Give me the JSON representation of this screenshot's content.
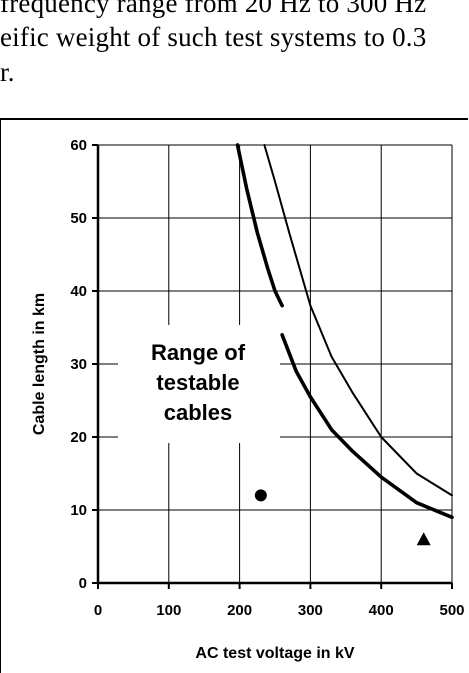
{
  "text": {
    "line1": "frequency range from 20 Hz to 300 Hz",
    "line2": "eific weight of such test systems to 0.3",
    "line3": "r."
  },
  "chart_data": {
    "type": "line",
    "xlabel": "AC test voltage in kV",
    "ylabel": "Cable length in km",
    "xlim": [
      0,
      500
    ],
    "ylim": [
      0,
      60
    ],
    "x_ticks": [
      "0",
      "100",
      "200",
      "300",
      "400",
      "500"
    ],
    "y_ticks": [
      "0",
      "10",
      "20",
      "30",
      "40",
      "50",
      "60"
    ],
    "grid": true,
    "series": [
      {
        "style": "thick",
        "segments": [
          [
            [
              197,
              60
            ],
            [
              210,
              54
            ],
            [
              225,
              48
            ],
            [
              240,
              43
            ],
            [
              250,
              40
            ],
            [
              260,
              38
            ]
          ],
          [
            [
              260,
              34
            ],
            [
              280,
              29
            ],
            [
              300,
              25.5
            ],
            [
              330,
              21
            ],
            [
              360,
              18
            ],
            [
              400,
              14.5
            ],
            [
              450,
              11
            ],
            [
              500,
              9
            ]
          ]
        ]
      },
      {
        "style": "thin",
        "segments": [
          [
            [
              235,
              60
            ],
            [
              250,
              55
            ],
            [
              270,
              48
            ],
            [
              300,
              38
            ],
            [
              330,
              31
            ],
            [
              360,
              26
            ],
            [
              400,
              20
            ],
            [
              450,
              15
            ],
            [
              500,
              12
            ]
          ]
        ]
      }
    ],
    "markers": [
      {
        "shape": "circle",
        "x": 230,
        "y": 12
      },
      {
        "shape": "triangle",
        "x": 460,
        "y": 6
      }
    ],
    "annotation": [
      "Range of",
      "testable",
      "cables"
    ]
  }
}
